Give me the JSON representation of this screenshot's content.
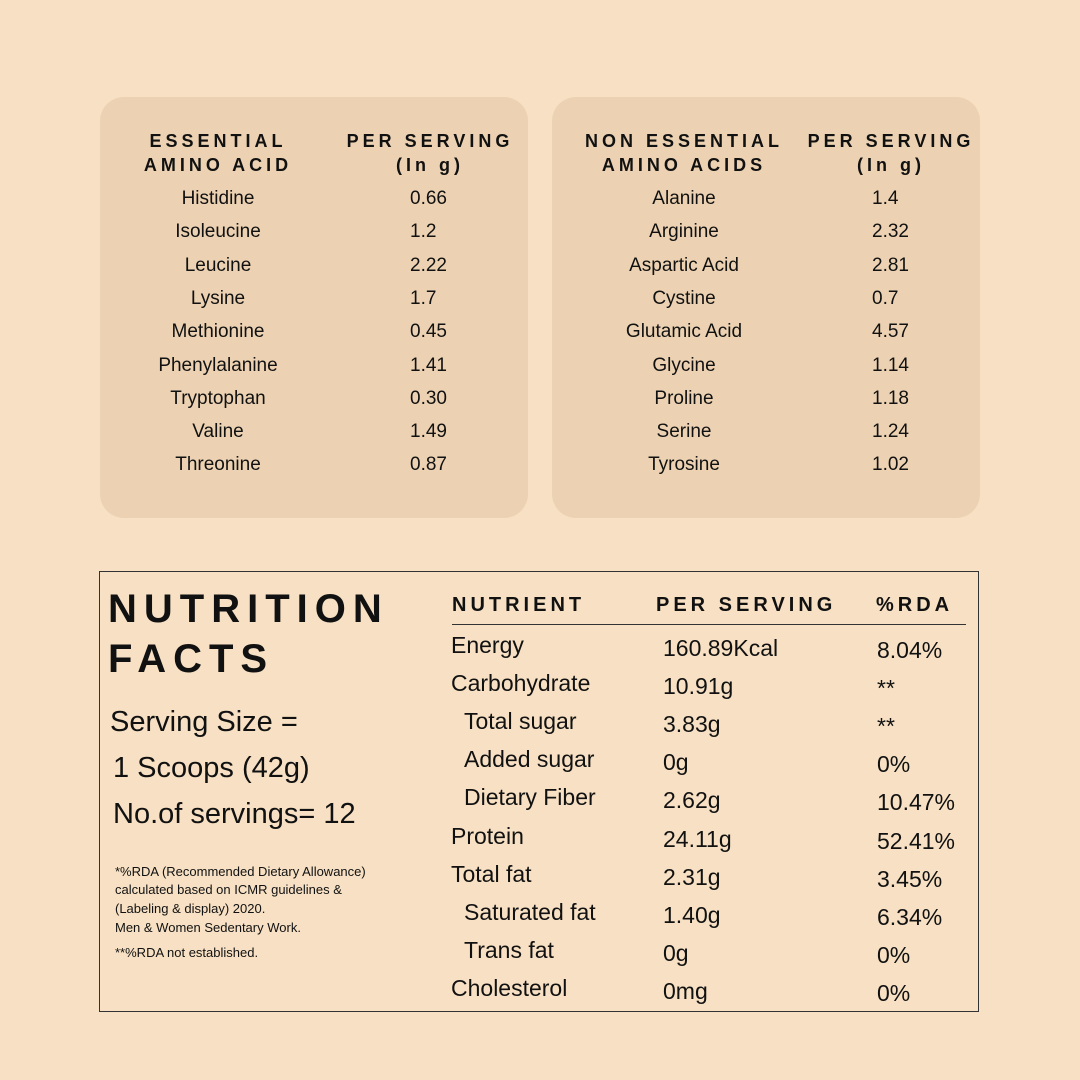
{
  "amino_tables": [
    {
      "headers": [
        "ESSENTIAL\nAMINO ACID",
        "PER SERVING\n(In g)"
      ],
      "rows": [
        [
          "Histidine",
          "0.66"
        ],
        [
          "Isoleucine",
          "1.2"
        ],
        [
          "Leucine",
          "2.22"
        ],
        [
          "Lysine",
          "1.7"
        ],
        [
          "Methionine",
          "0.45"
        ],
        [
          "Phenylalanine",
          "1.41"
        ],
        [
          "Tryptophan",
          "0.30"
        ],
        [
          "Valine",
          "1.49"
        ],
        [
          "Threonine",
          "0.87"
        ]
      ]
    },
    {
      "headers": [
        "NON ESSENTIAL\nAMINO ACIDS",
        "PER SERVING\n(In g)"
      ],
      "rows": [
        [
          "Alanine",
          "1.4"
        ],
        [
          "Arginine",
          "2.32"
        ],
        [
          "Aspartic Acid",
          "2.81"
        ],
        [
          "Cystine",
          "0.7"
        ],
        [
          "Glutamic Acid",
          "4.57"
        ],
        [
          "Glycine",
          "1.14"
        ],
        [
          "Proline",
          "1.18"
        ],
        [
          "Serine",
          "1.24"
        ],
        [
          "Tyrosine",
          "1.02"
        ]
      ]
    }
  ],
  "nutrition": {
    "title": [
      "NUTRITION",
      "FACTS"
    ],
    "serving": [
      "Serving Size =",
      "1 Scoops (42g)",
      "No.of servings= 12"
    ],
    "footnotes": [
      "*%RDA (Recommended Dietary Allowance)",
      "calculated based on ICMR guidelines &",
      "(Labeling & display) 2020.",
      "Men & Women Sedentary Work.",
      "**%RDA not established."
    ],
    "headers": [
      "NUTRIENT",
      "PER SERVING",
      "%RDA"
    ],
    "rows": [
      [
        "Energy",
        "160.89Kcal",
        "8.04%"
      ],
      [
        "Carbohydrate",
        "10.91g",
        "**"
      ],
      [
        "Total sugar",
        "3.83g",
        "**"
      ],
      [
        "Added sugar",
        "0g",
        "0%"
      ],
      [
        "Dietary Fiber",
        "2.62g",
        "10.47%"
      ],
      [
        "Protein",
        "24.11g",
        "52.41%"
      ],
      [
        "Total fat",
        "2.31g",
        "3.45%"
      ],
      [
        "Saturated fat",
        "1.40g",
        "6.34%"
      ],
      [
        "Trans fat",
        "0g",
        "0%"
      ],
      [
        "Cholesterol",
        "0mg",
        "0%"
      ]
    ]
  }
}
